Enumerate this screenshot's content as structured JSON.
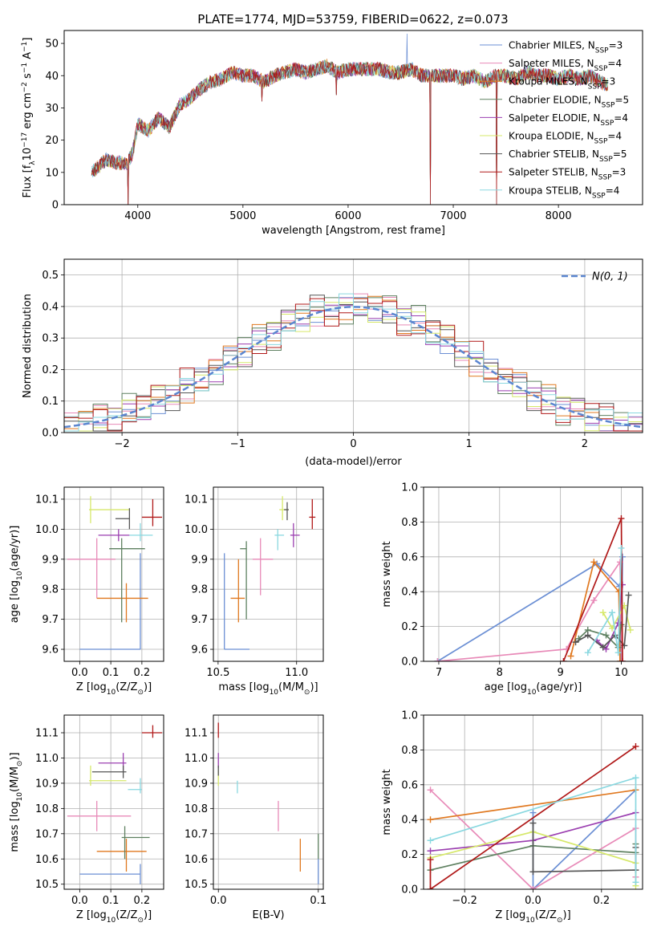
{
  "figure": {
    "title": "PLATE=1774, MJD=53759, FIBERID=0622, z=0.073"
  },
  "series": [
    {
      "name": "Chabrier MILES",
      "nssp": "3",
      "color": "#6b8fd4"
    },
    {
      "name": "Salpeter MILES",
      "nssp": "4",
      "color": "#e88ab8"
    },
    {
      "name": "Kroupa MILES",
      "nssp": "3",
      "color": "#e0781f"
    },
    {
      "name": "Chabrier ELODIE",
      "nssp": "5",
      "color": "#5e8060"
    },
    {
      "name": "Salpeter ELODIE",
      "nssp": "4",
      "color": "#9b3fb0"
    },
    {
      "name": "Kroupa ELODIE",
      "nssp": "4",
      "color": "#d6e86a"
    },
    {
      "name": "Chabrier STELIB",
      "nssp": "5",
      "color": "#555555"
    },
    {
      "name": "Salpeter STELIB",
      "nssp": "3",
      "color": "#b01818"
    },
    {
      "name": "Kroupa STELIB",
      "nssp": "4",
      "color": "#8ad8e0"
    }
  ],
  "chart_data": [
    {
      "id": "spectrum",
      "type": "line",
      "xlabel": "wavelength [Angstrom, rest frame]",
      "ylabel_parts": {
        "a": "Flux [f",
        "b": "λ",
        "c": "10",
        "d": "−17",
        "e": " erg cm",
        "f": "−2",
        "g": " s",
        "h": "−1",
        "i": " A",
        "j": "−1",
        "k": "]"
      },
      "xlim": [
        3300,
        8800
      ],
      "ylim": [
        0,
        54
      ],
      "xticks": [
        4000,
        5000,
        6000,
        7000,
        8000
      ],
      "yticks": [
        0,
        10,
        20,
        30,
        40,
        50
      ],
      "x_range_data": [
        3560,
        8470
      ],
      "envelope": {
        "x": [
          3560,
          3600,
          3700,
          3800,
          3900,
          3950,
          4000,
          4100,
          4200,
          4300,
          4400,
          4500,
          4600,
          4700,
          4800,
          4900,
          5000,
          5100,
          5200,
          5300,
          5400,
          5500,
          5600,
          5700,
          5800,
          5900,
          6000,
          6100,
          6200,
          6300,
          6400,
          6500,
          6600,
          6700,
          6800,
          6900,
          7000,
          7100,
          7200,
          7300,
          7400,
          7500,
          7600,
          7700,
          7800,
          7900,
          8000,
          8100,
          8200,
          8300,
          8400,
          8470
        ],
        "y": [
          10,
          11,
          14,
          13,
          13,
          16,
          25,
          23,
          27,
          24,
          31,
          33,
          36,
          38,
          39,
          41,
          40,
          40,
          38,
          40,
          41,
          42,
          41,
          42,
          43,
          41,
          42,
          42,
          42,
          42,
          41,
          41,
          42,
          40,
          40,
          40,
          40,
          39,
          40,
          38,
          40,
          40,
          39,
          41,
          40,
          40,
          39,
          40,
          39,
          40,
          38,
          37
        ]
      },
      "dips": [
        [
          3910,
          0
        ],
        [
          6780,
          0
        ],
        [
          7410,
          0
        ],
        [
          5180,
          32
        ],
        [
          5890,
          34
        ]
      ],
      "spikes": [
        [
          6560,
          53
        ]
      ]
    },
    {
      "id": "residuals",
      "type": "area",
      "xlabel": "(data-model)/error",
      "ylabel": "Normed distribution",
      "xlim": [
        -2.5,
        2.5
      ],
      "ylim": [
        0,
        0.55
      ],
      "xticks": [
        -2,
        -1,
        0,
        1,
        2
      ],
      "xticklabels": [
        "−2",
        "−1",
        "0",
        "1",
        "2"
      ],
      "yticks": [
        0,
        0.1,
        0.2,
        0.3,
        0.4,
        0.5
      ],
      "bins": 40,
      "legend": {
        "position": "top-right",
        "label": "N(0, 1)"
      },
      "jitter_sample": [
        0.05,
        -0.03,
        0.02,
        -0.06,
        0.04,
        0.01,
        -0.02,
        0.06,
        -0.04,
        0.03,
        0.0,
        -0.05,
        0.02,
        0.07,
        -0.01,
        0.04,
        -0.03,
        0.05,
        -0.06,
        0.01
      ]
    },
    {
      "id": "z_age",
      "type": "scatter",
      "xlabel_parts": {
        "a": "Z [log",
        "b": "10",
        "c": "(Z/Z",
        "d": "⊙",
        "e": ")]"
      },
      "ylabel_parts": {
        "a": "age  [log",
        "b": "10",
        "c": "(age/yr)]"
      },
      "xlim": [
        -0.05,
        0.27
      ],
      "ylim": [
        9.56,
        10.14
      ],
      "xticks": [
        0.0,
        0.1,
        0.2
      ],
      "yticks": [
        9.6,
        9.7,
        9.8,
        9.9,
        10.0,
        10.1
      ],
      "points": [
        {
          "x": 0.195,
          "y": 9.6,
          "xlo": 0.0,
          "xhi": 0.195,
          "ylo": 9.6,
          "yhi": 9.92
        },
        {
          "x": 0.055,
          "y": 9.9,
          "xlo": -0.04,
          "xhi": 0.115,
          "ylo": 9.77,
          "yhi": 9.97
        },
        {
          "x": 0.15,
          "y": 9.77,
          "xlo": 0.055,
          "xhi": 0.22,
          "ylo": 9.69,
          "yhi": 9.82
        },
        {
          "x": 0.135,
          "y": 9.935,
          "xlo": 0.095,
          "xhi": 0.21,
          "ylo": 9.69,
          "yhi": 9.97
        },
        {
          "x": 0.125,
          "y": 9.98,
          "xlo": 0.06,
          "xhi": 0.16,
          "ylo": 9.96,
          "yhi": 10.0
        },
        {
          "x": 0.035,
          "y": 10.065,
          "xlo": 0.03,
          "xhi": 0.16,
          "ylo": 10.02,
          "yhi": 10.11
        },
        {
          "x": 0.16,
          "y": 10.035,
          "xlo": 0.115,
          "xhi": 0.16,
          "ylo": 10.0,
          "yhi": 10.07
        },
        {
          "x": 0.235,
          "y": 10.04,
          "xlo": 0.2,
          "xhi": 0.265,
          "ylo": 10.01,
          "yhi": 10.1
        },
        {
          "x": 0.195,
          "y": 9.98,
          "xlo": 0.16,
          "xhi": 0.235,
          "ylo": 9.96,
          "yhi": 10.02
        }
      ]
    },
    {
      "id": "mass_age",
      "type": "scatter",
      "xlabel_parts": {
        "a": "mass [log",
        "b": "10",
        "c": "(M/M",
        "d": "⊙",
        "e": ")]"
      },
      "xlim": [
        10.47,
        11.17
      ],
      "ylim": [
        9.56,
        10.14
      ],
      "xticks": [
        10.5,
        11.0
      ],
      "yticks": [
        9.6,
        9.7,
        9.8,
        9.9,
        10.0,
        10.1
      ],
      "points": [
        {
          "x": 10.54,
          "y": 9.6,
          "xlo": 10.54,
          "xhi": 10.7,
          "ylo": 9.6,
          "yhi": 9.92
        },
        {
          "x": 10.77,
          "y": 9.9,
          "xlo": 10.72,
          "xhi": 10.85,
          "ylo": 9.78,
          "yhi": 9.97
        },
        {
          "x": 10.63,
          "y": 9.77,
          "xlo": 10.58,
          "xhi": 10.67,
          "ylo": 9.69,
          "yhi": 9.9
        },
        {
          "x": 10.68,
          "y": 9.935,
          "xlo": 10.64,
          "xhi": 10.68,
          "ylo": 9.7,
          "yhi": 9.96
        },
        {
          "x": 10.98,
          "y": 9.98,
          "xlo": 10.96,
          "xhi": 11.02,
          "ylo": 9.94,
          "yhi": 10.02
        },
        {
          "x": 10.91,
          "y": 10.065,
          "xlo": 10.89,
          "xhi": 10.95,
          "ylo": 10.03,
          "yhi": 10.11
        },
        {
          "x": 10.94,
          "y": 10.065,
          "xlo": 10.92,
          "xhi": 10.95,
          "ylo": 10.03,
          "yhi": 10.09
        },
        {
          "x": 11.1,
          "y": 10.04,
          "xlo": 11.08,
          "xhi": 11.12,
          "ylo": 10.0,
          "yhi": 10.1
        },
        {
          "x": 10.88,
          "y": 9.98,
          "xlo": 10.86,
          "xhi": 10.92,
          "ylo": 9.93,
          "yhi": 10.0
        }
      ]
    },
    {
      "id": "age_weight",
      "type": "line",
      "xlabel_parts": {
        "a": "age  [log",
        "b": "10",
        "c": "(age/yr)]"
      },
      "ylabel": "mass weight",
      "xlim": [
        6.75,
        10.35
      ],
      "ylim": [
        0,
        1.0
      ],
      "xticks": [
        7,
        8,
        9,
        10
      ],
      "yticks": [
        0.0,
        0.2,
        0.4,
        0.6,
        0.8,
        1.0
      ],
      "lines": [
        {
          "x": [
            6.98,
            9.6,
            9.97,
            10.0,
            10.02
          ],
          "y": [
            0.0,
            0.56,
            0.43,
            0.0,
            0.6
          ]
        },
        {
          "x": [
            6.98,
            9.1,
            9.55,
            9.98,
            10.01
          ],
          "y": [
            0.0,
            0.07,
            0.35,
            0.57,
            0.0
          ]
        },
        {
          "x": [
            9.17,
            9.55,
            9.96,
            9.98
          ],
          "y": [
            0.03,
            0.57,
            0.4,
            0.0
          ]
        },
        {
          "x": [
            9.3,
            9.45,
            9.75,
            9.95,
            10.0
          ],
          "y": [
            0.13,
            0.18,
            0.15,
            0.08,
            0.21
          ]
        },
        {
          "x": [
            9.6,
            9.75,
            9.95,
            10.02
          ],
          "y": [
            0.12,
            0.07,
            0.22,
            0.44
          ]
        },
        {
          "x": [
            9.7,
            9.85,
            10.05,
            10.15
          ],
          "y": [
            0.28,
            0.19,
            0.32,
            0.18
          ]
        },
        {
          "x": [
            9.25,
            9.45,
            9.7,
            9.9,
            10.05,
            10.12
          ],
          "y": [
            0.11,
            0.15,
            0.08,
            0.15,
            0.09,
            0.38
          ]
        },
        {
          "x": [
            9.05,
            10.0,
            10.02
          ],
          "y": [
            0.0,
            0.82,
            0.0
          ]
        },
        {
          "x": [
            9.45,
            9.85,
            9.95,
            10.0
          ],
          "y": [
            0.05,
            0.28,
            0.05,
            0.65
          ]
        }
      ]
    },
    {
      "id": "z_mass",
      "type": "scatter",
      "xlabel_parts": {
        "a": "Z [log",
        "b": "10",
        "c": "(Z/Z",
        "d": "⊙",
        "e": ")]"
      },
      "ylabel_parts": {
        "a": "mass [log",
        "b": "10",
        "c": "(M/M",
        "d": "⊙",
        "e": ")]"
      },
      "xlim": [
        -0.05,
        0.27
      ],
      "ylim": [
        10.48,
        11.17
      ],
      "xticks": [
        0.0,
        0.1,
        0.2
      ],
      "yticks": [
        10.5,
        10.6,
        10.7,
        10.8,
        10.9,
        11.0,
        11.1
      ],
      "points": [
        {
          "x": 0.195,
          "y": 10.54,
          "xlo": 0.0,
          "xhi": 0.195,
          "ylo": 10.5,
          "yhi": 10.58
        },
        {
          "x": 0.055,
          "y": 10.77,
          "xlo": -0.04,
          "xhi": 0.165,
          "ylo": 10.71,
          "yhi": 10.83
        },
        {
          "x": 0.15,
          "y": 10.63,
          "xlo": 0.055,
          "xhi": 0.215,
          "ylo": 10.55,
          "yhi": 10.68
        },
        {
          "x": 0.145,
          "y": 10.685,
          "xlo": 0.135,
          "xhi": 0.225,
          "ylo": 10.6,
          "yhi": 10.73
        },
        {
          "x": 0.14,
          "y": 10.98,
          "xlo": 0.06,
          "xhi": 0.15,
          "ylo": 10.95,
          "yhi": 11.02
        },
        {
          "x": 0.035,
          "y": 10.91,
          "xlo": 0.03,
          "xhi": 0.15,
          "ylo": 10.89,
          "yhi": 10.97
        },
        {
          "x": 0.14,
          "y": 10.945,
          "xlo": 0.04,
          "xhi": 0.15,
          "ylo": 10.92,
          "yhi": 10.97
        },
        {
          "x": 0.235,
          "y": 11.1,
          "xlo": 0.2,
          "xhi": 0.265,
          "ylo": 11.08,
          "yhi": 11.13
        },
        {
          "x": 0.195,
          "y": 10.875,
          "xlo": 0.155,
          "xhi": 0.2,
          "ylo": 10.86,
          "yhi": 10.92
        }
      ]
    },
    {
      "id": "ebv_mass",
      "type": "scatter",
      "xlabel": "E(B-V)",
      "xlim": [
        -0.005,
        0.105
      ],
      "ylim": [
        10.48,
        11.17
      ],
      "xticks": [
        0.0,
        0.1
      ],
      "yticks": [
        10.5,
        10.6,
        10.7,
        10.8,
        10.9,
        11.0,
        11.1
      ],
      "points": [
        {
          "x": 0.1,
          "y": 10.55,
          "ylo": 10.5,
          "yhi": 10.6
        },
        {
          "x": 0.06,
          "y": 10.77,
          "ylo": 10.71,
          "yhi": 10.83
        },
        {
          "x": 0.082,
          "y": 10.61,
          "ylo": 10.55,
          "yhi": 10.68
        },
        {
          "x": 0.1,
          "y": 10.65,
          "ylo": 10.6,
          "yhi": 10.7
        },
        {
          "x": 0.0,
          "y": 10.985,
          "ylo": 10.96,
          "yhi": 11.02
        },
        {
          "x": 0.0,
          "y": 10.92,
          "ylo": 10.89,
          "yhi": 10.95
        },
        {
          "x": 0.0,
          "y": 10.95,
          "ylo": 10.93,
          "yhi": 10.97
        },
        {
          "x": 0.0,
          "y": 11.11,
          "ylo": 11.08,
          "yhi": 11.14
        },
        {
          "x": 0.019,
          "y": 10.88,
          "ylo": 10.86,
          "yhi": 10.91
        }
      ]
    },
    {
      "id": "z_weight",
      "type": "line",
      "xlabel_parts": {
        "a": "Z [log",
        "b": "10",
        "c": "(Z/Z",
        "d": "⊙",
        "e": ")]"
      },
      "ylabel": "mass weight",
      "xlim": [
        -0.32,
        0.32
      ],
      "ylim": [
        0,
        1.0
      ],
      "xticks": [
        -0.2,
        0.0,
        0.2
      ],
      "xticklabels": [
        "−0.2",
        "0.0",
        "0.2"
      ],
      "yticks": [
        0.0,
        0.2,
        0.4,
        0.6,
        0.8,
        1.0
      ],
      "lines": [
        {
          "x": [
            0.0,
            0.0,
            0.3
          ],
          "y": [
            0.44,
            0.0,
            0.57
          ]
        },
        {
          "x": [
            -0.3,
            0.0,
            0.3,
            0.3
          ],
          "y": [
            0.57,
            0.0,
            0.35,
            0.07
          ]
        },
        {
          "x": [
            -0.3,
            0.3
          ],
          "y": [
            0.4,
            0.57
          ]
        },
        {
          "x": [
            -0.3,
            0.0,
            0.3,
            0.3
          ],
          "y": [
            0.11,
            0.25,
            0.21,
            0.26
          ]
        },
        {
          "x": [
            -0.3,
            0.0,
            0.3
          ],
          "y": [
            0.22,
            0.28,
            0.44
          ]
        },
        {
          "x": [
            -0.3,
            0.0,
            0.3,
            0.3
          ],
          "y": [
            0.18,
            0.33,
            0.15,
            0.02
          ]
        },
        {
          "x": [
            0.0,
            0.0,
            0.3,
            0.3
          ],
          "y": [
            0.38,
            0.1,
            0.11,
            0.24
          ]
        },
        {
          "x": [
            -0.3,
            -0.3,
            0.3
          ],
          "y": [
            0.17,
            0.0,
            0.82
          ]
        },
        {
          "x": [
            -0.3,
            0.3,
            0.3
          ],
          "y": [
            0.28,
            0.64,
            0.04
          ]
        }
      ]
    }
  ]
}
